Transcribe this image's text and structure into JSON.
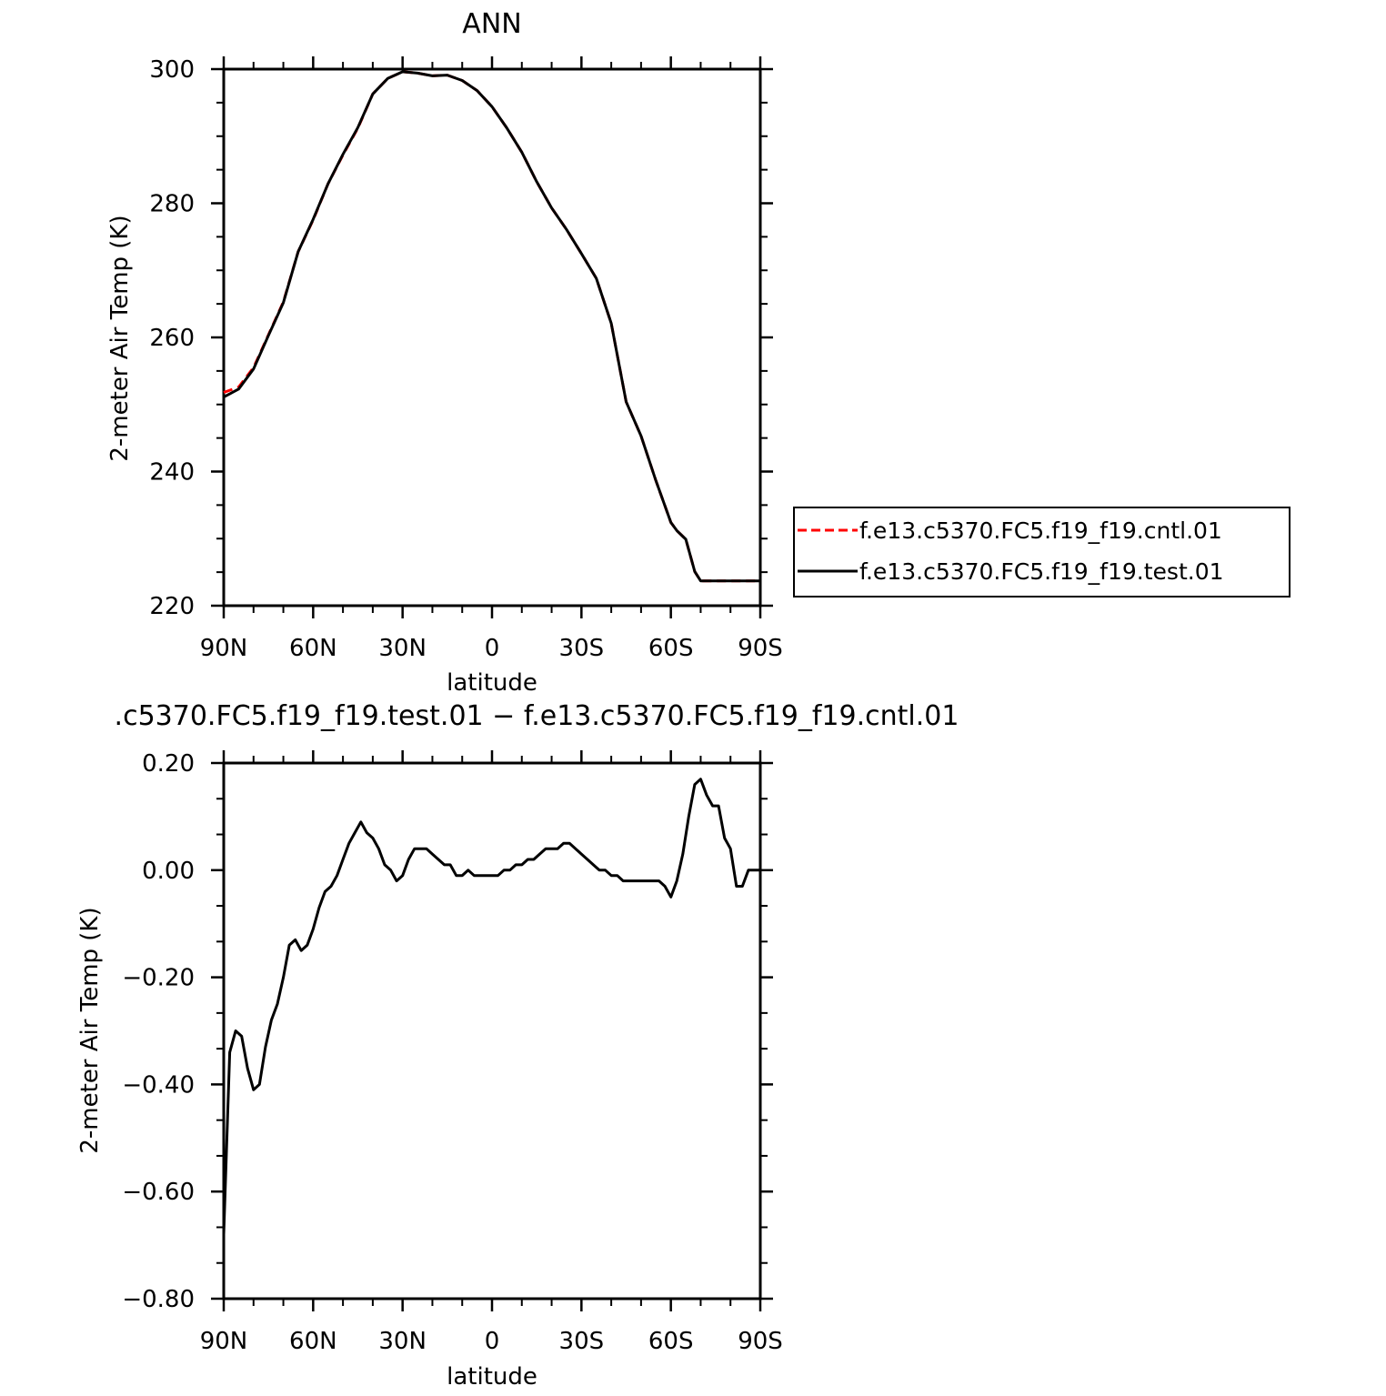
{
  "chart_data": [
    {
      "type": "line",
      "title": "ANN",
      "xlabel": "latitude",
      "ylabel": "2-meter Air Temp (K)",
      "xlim": [
        90,
        -90
      ],
      "ylim": [
        220,
        300
      ],
      "x_ticks": [
        {
          "value": 90,
          "label": "90N"
        },
        {
          "value": 60,
          "label": "60N"
        },
        {
          "value": 30,
          "label": "30N"
        },
        {
          "value": 0,
          "label": "0"
        },
        {
          "value": -30,
          "label": "30S"
        },
        {
          "value": -60,
          "label": "60S"
        },
        {
          "value": -90,
          "label": "90S"
        }
      ],
      "y_ticks": [
        {
          "value": 300,
          "label": "300"
        },
        {
          "value": 280,
          "label": "280"
        },
        {
          "value": 260,
          "label": "260"
        },
        {
          "value": 240,
          "label": "240"
        },
        {
          "value": 220,
          "label": "220"
        }
      ],
      "legend": {
        "position": "right",
        "entries": [
          "f.e13.c5370.FC5.f19_f19.cntl.01",
          "f.e13.c5370.FC5.f19_f19.test.01"
        ]
      },
      "series": [
        {
          "name": "f.e13.c5370.FC5.f19_f19.cntl.01",
          "color": "#ff0000",
          "dash": "dashed",
          "x": [
            90,
            85,
            80,
            75,
            70,
            65,
            60,
            55,
            50,
            45,
            40,
            35,
            30,
            25,
            20,
            15,
            10,
            5,
            0,
            -5,
            -10,
            -15,
            -20,
            -25,
            -30,
            -35,
            -40,
            -45,
            -50,
            -55,
            -60,
            -62,
            -65,
            -68,
            -70,
            -72,
            -75,
            -78,
            -80,
            -83,
            -85,
            -88,
            -90
          ],
          "y": [
            251.8,
            252.6,
            255.5,
            260.4,
            265.3,
            272.8,
            277.5,
            282.9,
            287.2,
            291.2,
            296.3,
            298.6,
            299.6,
            299.4,
            299.0,
            299.1,
            298.3,
            296.8,
            294.4,
            291.2,
            287.6,
            283.2,
            279.3,
            276.1,
            272.5,
            268.8,
            262.1,
            250.4,
            245.3,
            238.6,
            232.4,
            231.2,
            229.9,
            225.1,
            223.7,
            223.7,
            223.7,
            223.7,
            223.7,
            223.7,
            223.7,
            223.7,
            223.7
          ]
        },
        {
          "name": "f.e13.c5370.FC5.f19_f19.test.01",
          "color": "#000000",
          "dash": "solid",
          "x": [
            90,
            85,
            80,
            75,
            70,
            65,
            60,
            55,
            50,
            45,
            40,
            35,
            30,
            25,
            20,
            15,
            10,
            5,
            0,
            -5,
            -10,
            -15,
            -20,
            -25,
            -30,
            -35,
            -40,
            -45,
            -50,
            -55,
            -60,
            -62,
            -65,
            -68,
            -70,
            -72,
            -75,
            -78,
            -80,
            -83,
            -85,
            -88,
            -90
          ],
          "y": [
            251.1,
            252.3,
            255.3,
            260.3,
            265.2,
            272.8,
            277.6,
            282.9,
            287.3,
            291.3,
            296.3,
            298.6,
            299.6,
            299.4,
            299.0,
            299.1,
            298.3,
            296.8,
            294.4,
            291.2,
            287.6,
            283.2,
            279.3,
            276.1,
            272.5,
            268.8,
            262.1,
            250.4,
            245.3,
            238.6,
            232.4,
            231.2,
            229.9,
            225.1,
            223.7,
            223.7,
            223.7,
            223.7,
            223.7,
            223.7,
            223.7,
            223.7,
            223.7
          ]
        }
      ]
    },
    {
      "type": "line",
      "title": ".c5370.FC5.f19_f19.test.01 − f.e13.c5370.FC5.f19_f19.cntl.01",
      "xlabel": "latitude",
      "ylabel": "2-meter Air Temp (K)",
      "xlim": [
        90,
        -90
      ],
      "ylim": [
        -0.8,
        0.2
      ],
      "x_ticks": [
        {
          "value": 90,
          "label": "90N"
        },
        {
          "value": 60,
          "label": "60N"
        },
        {
          "value": 30,
          "label": "30N"
        },
        {
          "value": 0,
          "label": "0"
        },
        {
          "value": -30,
          "label": "30S"
        },
        {
          "value": -60,
          "label": "60S"
        },
        {
          "value": -90,
          "label": "90S"
        }
      ],
      "y_ticks": [
        {
          "value": 0.2,
          "label": "0.20"
        },
        {
          "value": 0.0,
          "label": "0.00"
        },
        {
          "value": -0.2,
          "label": "−0.20"
        },
        {
          "value": -0.4,
          "label": "−0.40"
        },
        {
          "value": -0.6,
          "label": "−0.60"
        },
        {
          "value": -0.8,
          "label": "−0.80"
        }
      ],
      "series": [
        {
          "color": "#000000",
          "dash": "solid",
          "x": [
            90,
            88,
            86,
            84,
            82,
            80,
            78,
            76,
            74,
            72,
            70,
            68,
            66,
            64,
            62,
            60,
            58,
            56,
            54,
            52,
            50,
            48,
            46,
            44,
            42,
            40,
            38,
            36,
            34,
            32,
            30,
            28,
            26,
            24,
            22,
            20,
            18,
            16,
            14,
            12,
            10,
            8,
            6,
            4,
            2,
            0,
            -2,
            -4,
            -6,
            -8,
            -10,
            -12,
            -14,
            -16,
            -18,
            -20,
            -22,
            -24,
            -26,
            -28,
            -30,
            -32,
            -34,
            -36,
            -38,
            -40,
            -42,
            -44,
            -46,
            -48,
            -50,
            -52,
            -54,
            -56,
            -58,
            -60,
            -62,
            -64,
            -66,
            -68,
            -70,
            -72,
            -74,
            -76,
            -78,
            -80,
            -82,
            -84,
            -86,
            -88,
            -90
          ],
          "y": [
            -0.68,
            -0.34,
            -0.3,
            -0.31,
            -0.37,
            -0.41,
            -0.4,
            -0.33,
            -0.28,
            -0.25,
            -0.2,
            -0.14,
            -0.13,
            -0.15,
            -0.14,
            -0.11,
            -0.07,
            -0.04,
            -0.03,
            -0.01,
            0.02,
            0.05,
            0.07,
            0.09,
            0.07,
            0.06,
            0.04,
            0.01,
            0.0,
            -0.02,
            -0.01,
            0.02,
            0.04,
            0.04,
            0.04,
            0.03,
            0.02,
            0.01,
            0.01,
            -0.01,
            -0.01,
            0.0,
            -0.01,
            -0.01,
            -0.01,
            -0.01,
            -0.01,
            0.0,
            0.0,
            0.01,
            0.01,
            0.02,
            0.02,
            0.03,
            0.04,
            0.04,
            0.04,
            0.05,
            0.05,
            0.04,
            0.03,
            0.02,
            0.01,
            0.0,
            0.0,
            -0.01,
            -0.01,
            -0.02,
            -0.02,
            -0.02,
            -0.02,
            -0.02,
            -0.02,
            -0.02,
            -0.03,
            -0.05,
            -0.02,
            0.03,
            0.1,
            0.16,
            0.17,
            0.14,
            0.12,
            0.12,
            0.06,
            0.04,
            -0.03,
            -0.03,
            0.0,
            0.0,
            0.0
          ]
        }
      ]
    }
  ]
}
